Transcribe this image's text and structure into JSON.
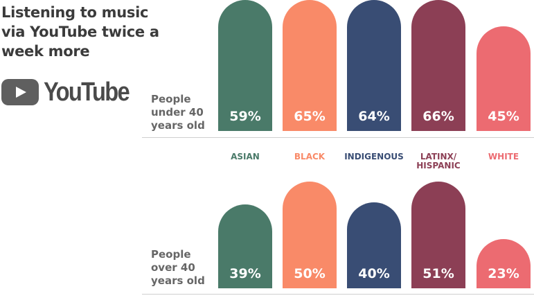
{
  "header": {
    "title": "Listening to music via YouTube twice a week more",
    "logo_text": "YouTube"
  },
  "chart_data": {
    "type": "bar",
    "title": "Listening to music via YouTube twice a week more",
    "categories": [
      "ASIAN",
      "BLACK",
      "INDIGENOUS",
      "LATINX/\nHISPANIC",
      "WHITE"
    ],
    "category_colors": [
      "#4a7a69",
      "#f98a68",
      "#394d74",
      "#8c3f55",
      "#ec6b71"
    ],
    "series": [
      {
        "name": "People under 40 years old",
        "values": [
          59,
          65,
          64,
          66,
          45
        ],
        "labels": [
          "59%",
          "65%",
          "64%",
          "66%",
          "45%"
        ]
      },
      {
        "name": "People over 40 years old",
        "values": [
          39,
          50,
          40,
          51,
          23
        ],
        "labels": [
          "39%",
          "50%",
          "40%",
          "51%",
          "23%"
        ]
      }
    ],
    "ylim": [
      0,
      100
    ],
    "grid": false
  },
  "rows": [
    {
      "label": "People under 40 years old"
    },
    {
      "label": "People over 40 years old"
    }
  ]
}
